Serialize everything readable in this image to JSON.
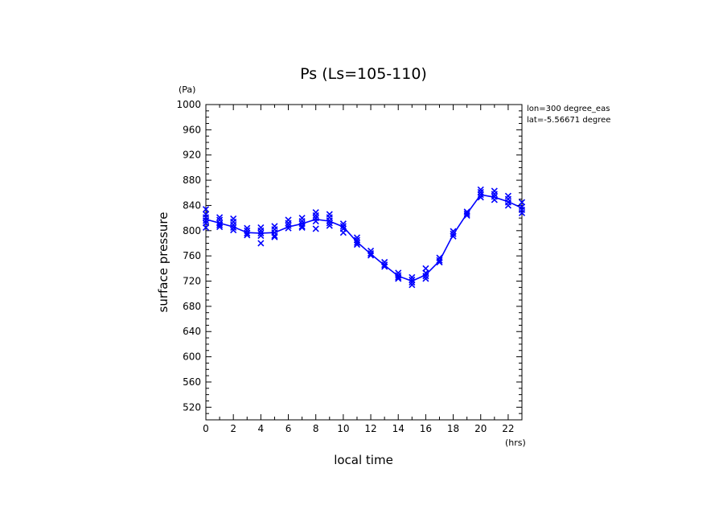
{
  "chart_data": {
    "type": "line",
    "title": "Ps (Ls=105-110)",
    "xlabel": "local time",
    "ylabel": "surface pressure",
    "x_unit": "(hrs)",
    "y_unit": "(Pa)",
    "xlim": [
      0,
      23
    ],
    "ylim": [
      500,
      1000
    ],
    "x_ticks": [
      0,
      2,
      4,
      6,
      8,
      10,
      12,
      14,
      16,
      18,
      20,
      22
    ],
    "y_ticks": [
      520,
      560,
      600,
      640,
      680,
      720,
      760,
      800,
      840,
      880,
      920,
      960,
      1000
    ],
    "annotations": [
      "lon=300 degree_eas",
      "lat=-5.56671 degree"
    ],
    "line_color": "#0000ff",
    "grid": false,
    "series": [
      {
        "type": "line",
        "x": [
          0,
          1,
          2,
          3,
          4,
          5,
          6,
          7,
          8,
          9,
          10,
          11,
          12,
          13,
          14,
          15,
          16,
          17,
          18,
          19,
          20,
          21,
          22,
          23
        ],
        "y": [
          818,
          812,
          806,
          797,
          796,
          797,
          806,
          811,
          818,
          815,
          806,
          782,
          763,
          745,
          728,
          720,
          730,
          752,
          794,
          827,
          857,
          853,
          846,
          836
        ]
      },
      {
        "type": "scatter",
        "marker": "x",
        "points": [
          [
            0,
            834
          ],
          [
            0,
            826
          ],
          [
            0,
            821
          ],
          [
            0,
            816
          ],
          [
            0,
            812
          ],
          [
            0,
            805
          ],
          [
            1,
            821
          ],
          [
            1,
            817
          ],
          [
            1,
            812
          ],
          [
            1,
            809
          ],
          [
            1,
            806
          ],
          [
            2,
            819
          ],
          [
            2,
            814
          ],
          [
            2,
            809
          ],
          [
            2,
            805
          ],
          [
            2,
            801
          ],
          [
            3,
            804
          ],
          [
            3,
            800
          ],
          [
            3,
            796
          ],
          [
            3,
            793
          ],
          [
            4,
            805
          ],
          [
            4,
            800
          ],
          [
            4,
            796
          ],
          [
            4,
            792
          ],
          [
            4,
            780
          ],
          [
            5,
            807
          ],
          [
            5,
            802
          ],
          [
            5,
            797
          ],
          [
            5,
            792
          ],
          [
            5,
            790
          ],
          [
            6,
            817
          ],
          [
            6,
            812
          ],
          [
            6,
            808
          ],
          [
            6,
            804
          ],
          [
            7,
            820
          ],
          [
            7,
            815
          ],
          [
            7,
            811
          ],
          [
            7,
            807
          ],
          [
            7,
            805
          ],
          [
            8,
            829
          ],
          [
            8,
            824
          ],
          [
            8,
            820
          ],
          [
            8,
            815
          ],
          [
            8,
            803
          ],
          [
            9,
            826
          ],
          [
            9,
            821
          ],
          [
            9,
            816
          ],
          [
            9,
            812
          ],
          [
            9,
            808
          ],
          [
            10,
            811
          ],
          [
            10,
            807
          ],
          [
            10,
            803
          ],
          [
            10,
            797
          ],
          [
            11,
            789
          ],
          [
            11,
            785
          ],
          [
            11,
            781
          ],
          [
            11,
            778
          ],
          [
            12,
            768
          ],
          [
            12,
            764
          ],
          [
            12,
            761
          ],
          [
            13,
            750
          ],
          [
            13,
            746
          ],
          [
            13,
            743
          ],
          [
            14,
            733
          ],
          [
            14,
            729
          ],
          [
            14,
            726
          ],
          [
            14,
            724
          ],
          [
            15,
            726
          ],
          [
            15,
            722
          ],
          [
            15,
            718
          ],
          [
            15,
            714
          ],
          [
            16,
            740
          ],
          [
            16,
            733
          ],
          [
            16,
            728
          ],
          [
            16,
            724
          ],
          [
            17,
            757
          ],
          [
            17,
            753
          ],
          [
            17,
            750
          ],
          [
            18,
            799
          ],
          [
            18,
            795
          ],
          [
            18,
            791
          ],
          [
            19,
            830
          ],
          [
            19,
            827
          ],
          [
            19,
            824
          ],
          [
            20,
            865
          ],
          [
            20,
            861
          ],
          [
            20,
            857
          ],
          [
            20,
            853
          ],
          [
            21,
            863
          ],
          [
            21,
            858
          ],
          [
            21,
            854
          ],
          [
            21,
            849
          ],
          [
            22,
            855
          ],
          [
            22,
            850
          ],
          [
            22,
            845
          ],
          [
            22,
            840
          ],
          [
            23,
            845
          ],
          [
            23,
            838
          ],
          [
            23,
            833
          ],
          [
            23,
            828
          ]
        ]
      }
    ]
  }
}
